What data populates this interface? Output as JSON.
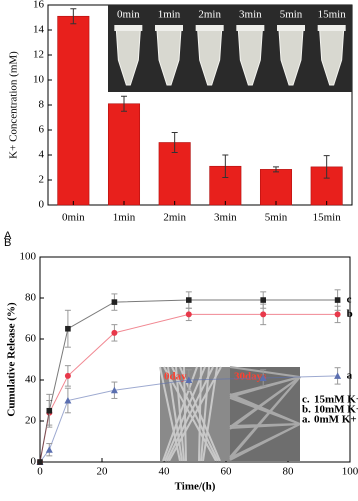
{
  "chart_data": [
    {
      "type": "bar",
      "panel_label": "A",
      "y_label": "K+ Concentration (mM)",
      "categories": [
        "0min",
        "1min",
        "2min",
        "3min",
        "5min",
        "15min"
      ],
      "values": [
        15.1,
        8.1,
        5.0,
        3.1,
        2.85,
        3.05
      ],
      "errors": [
        0.6,
        0.6,
        0.8,
        0.9,
        0.2,
        0.9
      ],
      "color": "#e8201c",
      "ylim": [
        0,
        16
      ],
      "yticks": [
        0,
        2,
        4,
        6,
        8,
        10,
        12,
        14,
        16
      ],
      "inset_labels": [
        "0min",
        "1min",
        "2min",
        "3min",
        "5min",
        "15min"
      ]
    },
    {
      "type": "line",
      "panel_label": "B",
      "x_label": "Time/(h)",
      "y_label": "Cumulative Release (%)",
      "x": [
        0,
        3,
        9,
        24,
        48,
        72,
        96
      ],
      "xlim": [
        0,
        100
      ],
      "xticks": [
        0,
        20,
        40,
        60,
        80,
        100
      ],
      "ylim": [
        0,
        100
      ],
      "yticks": [
        0,
        20,
        40,
        60,
        80,
        100
      ],
      "series": [
        {
          "name": "0mM K+",
          "tag": "a",
          "legend_key": "a.",
          "color": "#5b6fb0",
          "marker": "triangle",
          "values": [
            0,
            6,
            30,
            35,
            40,
            41,
            42
          ],
          "errors": [
            0,
            3,
            6,
            4,
            5,
            4,
            4
          ]
        },
        {
          "name": "10mM K+",
          "tag": "b",
          "legend_key": "b.",
          "color": "#e8384a",
          "marker": "circle",
          "values": [
            0,
            24,
            42,
            63,
            72,
            72,
            72
          ],
          "errors": [
            0,
            6,
            5,
            4,
            3,
            5,
            4
          ]
        },
        {
          "name": "15mM K+",
          "tag": "c",
          "legend_key": "c.",
          "color": "#222222",
          "marker": "square",
          "values": [
            0,
            25,
            65,
            78,
            79,
            79,
            79
          ],
          "errors": [
            0,
            8,
            9,
            4,
            4,
            4,
            5
          ]
        }
      ],
      "inset_labels": [
        "0day",
        "30days"
      ]
    }
  ]
}
